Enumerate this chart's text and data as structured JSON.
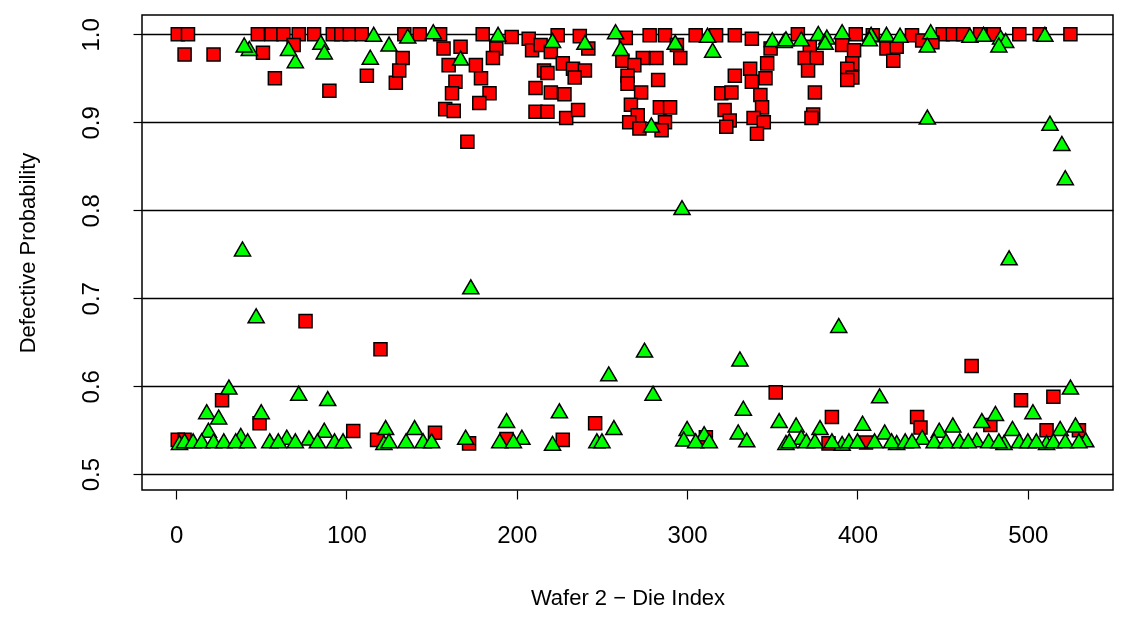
{
  "chart_data": {
    "type": "scatter",
    "xlabel": "Wafer 2 − Die Index",
    "ylabel": "Defective Probability",
    "xlim": [
      -20,
      550
    ],
    "xticks": [
      0,
      100,
      200,
      300,
      400,
      500
    ],
    "ylim": [
      0.482,
      1.022
    ],
    "yticks": [
      0.5,
      0.6,
      0.7,
      0.8,
      0.9,
      {
        "value": 1,
        "label": "1.0"
      }
    ],
    "grid": "y",
    "series": [
      {
        "color": "#ff0000",
        "marker": "square",
        "x": [
          1,
          7,
          48,
          56,
          63,
          72,
          81,
          92,
          97,
          102,
          109,
          134,
          143,
          155,
          180,
          197,
          207,
          224,
          237,
          264,
          278,
          287,
          305,
          317,
          328,
          365,
          399,
          409,
          432,
          450,
          456,
          462,
          472,
          480,
          495,
          507,
          525,
          5,
          22,
          51,
          58,
          90,
          69,
          112,
          129,
          133,
          131,
          157,
          160,
          164,
          162,
          158,
          163,
          171,
          167,
          338,
          188,
          186,
          176,
          179,
          184,
          178,
          209,
          214,
          220,
          227,
          216,
          218,
          211,
          220,
          228,
          211,
          218,
          229,
          236,
          233,
          240,
          242,
          234,
          294,
          296,
          262,
          274,
          282,
          269,
          265,
          265,
          283,
          273,
          267,
          271,
          266,
          272,
          284,
          290,
          287,
          285,
          349,
          347,
          346,
          337,
          328,
          338,
          320,
          326,
          343,
          344,
          322,
          325,
          323,
          339,
          345,
          341,
          372,
          369,
          376,
          371,
          375,
          374,
          373,
          391,
          398,
          397,
          394,
          397,
          394,
          417,
          423,
          421,
          438,
          444,
          76,
          120,
          467,
          352,
          496,
          515,
          27,
          49,
          104,
          152,
          172,
          227,
          246,
          1,
          5,
          118,
          194,
          385,
          435,
          437,
          478,
          511,
          530,
          311,
          405,
          383
        ],
        "values": [
          1,
          1,
          1,
          1,
          1,
          1,
          1,
          1,
          1,
          1,
          1,
          1,
          1,
          1,
          1,
          0.997,
          0.995,
          0.999,
          0.998,
          0.996,
          0.999,
          0.999,
          0.999,
          0.999,
          0.999,
          1,
          1,
          0.999,
          0.999,
          1,
          1,
          1,
          1,
          1,
          1,
          1,
          1,
          0.977,
          0.977,
          0.979,
          0.95,
          0.936,
          0.988,
          0.953,
          0.945,
          0.973,
          0.959,
          0.984,
          0.965,
          0.946,
          0.933,
          0.915,
          0.913,
          0.878,
          0.986,
          0.995,
          0.984,
          0.973,
          0.965,
          0.95,
          0.933,
          0.922,
          0.982,
          0.988,
          0.98,
          0.967,
          0.959,
          0.956,
          0.939,
          0.934,
          0.932,
          0.912,
          0.912,
          0.905,
          0.914,
          0.961,
          0.959,
          0.984,
          0.951,
          0.988,
          0.973,
          0.97,
          0.973,
          0.973,
          0.965,
          0.953,
          0.944,
          0.948,
          0.934,
          0.92,
          0.908,
          0.9,
          0.893,
          0.917,
          0.917,
          0.9,
          0.891,
          0.984,
          0.967,
          0.95,
          0.961,
          0.953,
          0.946,
          0.933,
          0.934,
          0.931,
          0.917,
          0.914,
          0.902,
          0.895,
          0.905,
          0.9,
          0.887,
          0.986,
          0.973,
          0.973,
          0.959,
          0.934,
          0.909,
          0.905,
          0.988,
          0.982,
          0.967,
          0.961,
          0.951,
          0.948,
          0.984,
          0.986,
          0.97,
          0.993,
          0.991,
          0.674,
          0.642,
          0.623,
          0.593,
          0.584,
          0.588,
          0.584,
          0.558,
          0.549,
          0.547,
          0.535,
          0.539,
          0.558,
          0.539,
          0.539,
          0.539,
          0.54,
          0.565,
          0.565,
          0.553,
          0.556,
          0.55,
          0.55,
          0.542,
          0.536,
          0.535
        ]
      },
      {
        "color": "#00ff00",
        "marker": "triangle",
        "x": [
          43,
          40,
          70,
          85,
          87,
          116,
          114,
          125,
          136,
          151,
          167,
          66,
          189,
          221,
          240,
          258,
          261,
          279,
          293,
          312,
          315,
          350,
          357,
          358,
          367,
          377,
          382,
          381,
          391,
          408,
          407,
          417,
          425,
          443,
          441,
          466,
          474,
          484,
          487,
          483,
          510,
          441,
          513,
          520,
          522,
          297,
          39,
          489,
          173,
          47,
          389,
          275,
          331,
          254,
          525,
          31,
          18,
          25,
          72,
          89,
          50,
          225,
          194,
          257,
          123,
          122,
          140,
          170,
          203,
          78,
          65,
          87,
          38,
          19,
          2,
          221,
          280,
          413,
          333,
          300,
          310,
          330,
          335,
          354,
          364,
          367,
          378,
          391,
          403,
          416,
          438,
          448,
          456,
          470,
          473,
          481,
          491,
          503,
          519,
          528,
          534,
          298,
          358,
          423,
          486,
          511,
          5,
          10,
          15,
          22,
          28,
          35,
          42,
          55,
          60,
          70,
          83,
          93,
          98,
          125,
          135,
          145,
          150,
          190,
          198,
          247,
          250,
          305,
          313,
          360,
          370,
          375,
          385,
          395,
          400,
          410,
          420,
          428,
          432,
          445,
          452,
          460,
          465,
          477,
          483,
          495,
          500,
          505,
          515,
          522,
          530
        ],
        "values": [
          0.984,
          0.988,
          0.97,
          0.991,
          0.98,
          1,
          0.974,
          0.989,
          0.998,
          1.003,
          0.973,
          0.984,
          1,
          0.993,
          0.991,
          1.003,
          0.984,
          0.897,
          0.991,
          0.999,
          0.982,
          0.994,
          0.993,
          0.995,
          0.995,
          1.001,
          0.997,
          0.991,
          1.003,
          1,
          0.995,
          1,
          0.999,
          1.003,
          0.988,
          0.999,
          1,
          0.997,
          0.993,
          0.988,
          1,
          0.906,
          0.899,
          0.876,
          0.837,
          0.803,
          0.756,
          0.746,
          0.713,
          0.68,
          0.669,
          0.641,
          0.631,
          0.614,
          0.599,
          0.599,
          0.571,
          0.565,
          0.592,
          0.586,
          0.571,
          0.572,
          0.561,
          0.553,
          0.553,
          0.536,
          0.553,
          0.542,
          0.542,
          0.541,
          0.542,
          0.55,
          0.544,
          0.55,
          0.536,
          0.535,
          0.592,
          0.589,
          0.575,
          0.552,
          0.546,
          0.548,
          0.539,
          0.561,
          0.556,
          0.542,
          0.553,
          0.535,
          0.558,
          0.548,
          0.542,
          0.55,
          0.556,
          0.539,
          0.561,
          0.569,
          0.552,
          0.571,
          0.552,
          0.556,
          0.539,
          0.54,
          0.536,
          0.536,
          0.536,
          0.536,
          0.538,
          0.538,
          0.538,
          0.538,
          0.538,
          0.538,
          0.538,
          0.538,
          0.538,
          0.538,
          0.538,
          0.538,
          0.538,
          0.538,
          0.538,
          0.538,
          0.538,
          0.538,
          0.538,
          0.538,
          0.538,
          0.538,
          0.538,
          0.538,
          0.538,
          0.538,
          0.538,
          0.538,
          0.538,
          0.538,
          0.538,
          0.538,
          0.538,
          0.538,
          0.538,
          0.538,
          0.538,
          0.538,
          0.538,
          0.538,
          0.538,
          0.538,
          0.538,
          0.538,
          0.538
        ]
      }
    ]
  }
}
